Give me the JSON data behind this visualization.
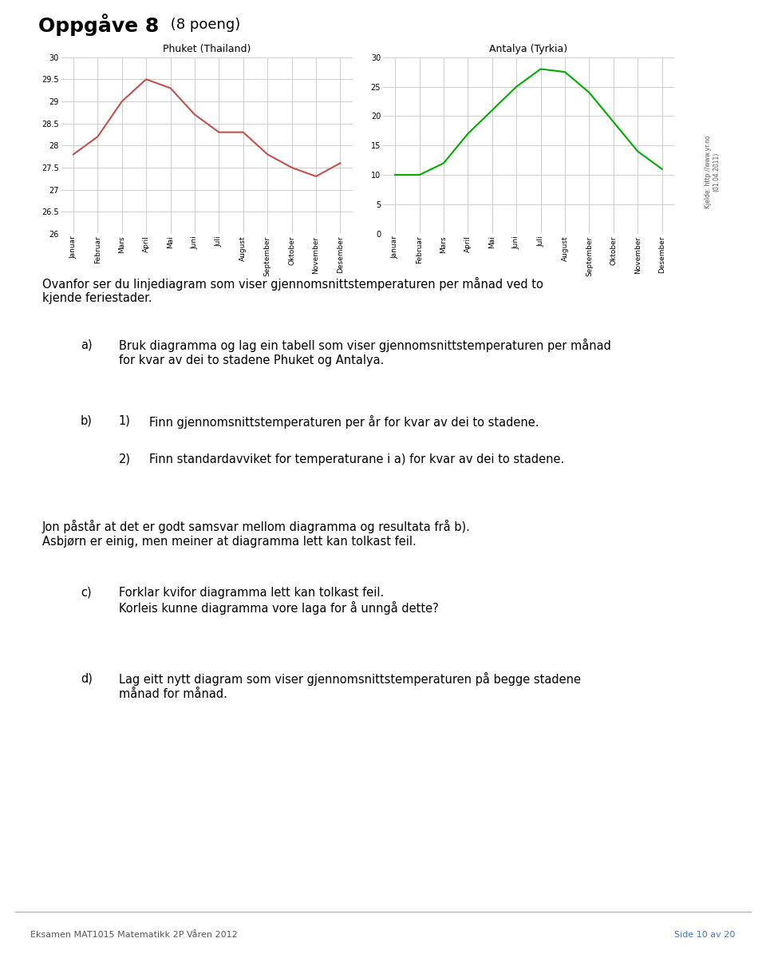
{
  "title_bold": "Oppgåve 8",
  "title_normal": " (8 poeng)",
  "phuket_title": "Phuket (Thailand)",
  "antalya_title": "Antalya (Tyrkia)",
  "months": [
    "Januar",
    "Februar",
    "Mars",
    "April",
    "Mai",
    "Juni",
    "Juli",
    "August",
    "September",
    "Oktober",
    "November",
    "Desember"
  ],
  "phuket_temps": [
    27.8,
    28.2,
    29.0,
    29.5,
    29.3,
    28.7,
    28.3,
    28.3,
    27.8,
    27.5,
    27.3,
    27.6
  ],
  "antalya_temps": [
    10.0,
    10.0,
    12.0,
    17.0,
    21.0,
    25.0,
    28.0,
    27.5,
    24.0,
    19.0,
    14.0,
    11.0
  ],
  "phuket_color": "#c0504d",
  "antalya_color": "#00aa00",
  "phuket_ylim": [
    26,
    30
  ],
  "phuket_yticks": [
    26,
    26.5,
    27,
    27.5,
    28,
    28.5,
    29,
    29.5,
    30
  ],
  "antalya_ylim": [
    0,
    30
  ],
  "antalya_yticks": [
    0,
    5,
    10,
    15,
    20,
    25,
    30
  ],
  "grid_color": "#cccccc",
  "background_color": "#ffffff",
  "source_text": "Kjelde: http://www.yr.no\n(01.04.2011)",
  "footer_left": "Eksamen MAT1015 Matematikk 2P Våren 2012",
  "footer_right": "Side 10 av 20",
  "intro_text": "Ovanfor ser du linjediagram som viser gjennomsnittstemperaturen per månad ved to\nkjende feriestader.",
  "a_label": "a)",
  "a_text": "Bruk diagramma og lag ein tabell som viser gjennomsnittstemperaturen per månad\nfor kvar av dei to stadene Phuket og Antalya.",
  "b_label": "b)",
  "b1_label": "1)",
  "b1_text": "Finn gjennomsnittstemperaturen per år for kvar av dei to stadene.",
  "b2_label": "2)",
  "b2_text": "Finn standardavviket for temperaturane i a) for kvar av dei to stadene.",
  "jon_text": "Jon påstår at det er godt samsvar mellom diagramma og resultata frå b).\nAsbjørn er einig, men meiner at diagramma lett kan tolkast feil.",
  "c_label": "c)",
  "c_text": "Forklar kvifor diagramma lett kan tolkast feil.\nKorleis kunne diagramma vore laga for å unngå dette?",
  "d_label": "d)",
  "d_text": "Lag eitt nytt diagram som viser gjennomsnittstemperaturen på begge stadene\nmånad for månad."
}
